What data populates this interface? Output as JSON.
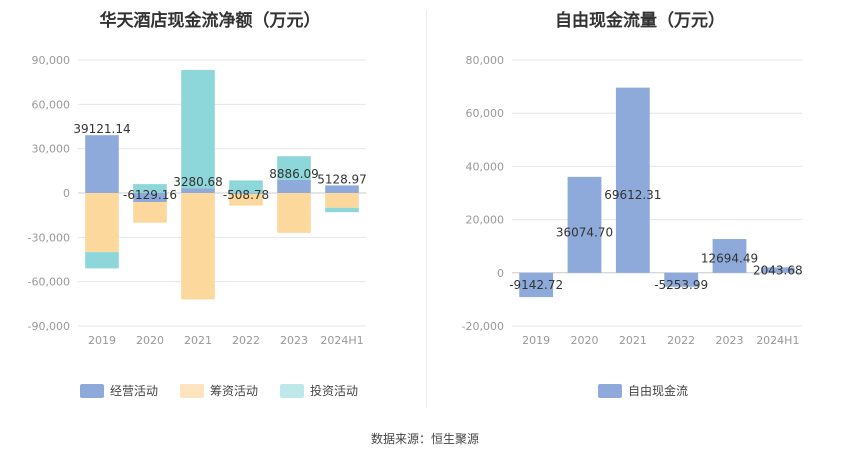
{
  "source_label": "数据来源：恒生聚源",
  "chart_data": [
    {
      "type": "bar",
      "stacked": true,
      "title": "华天酒店现金流净额（万元）",
      "categories": [
        "2019",
        "2020",
        "2021",
        "2022",
        "2023",
        "2024H1"
      ],
      "ylim": [
        -90000,
        90000
      ],
      "yticks": [
        90000,
        60000,
        30000,
        0,
        -30000,
        -60000,
        -90000
      ],
      "ytick_labels": [
        "90,000",
        "60,000",
        "30,000",
        "0",
        "-30,000",
        "-60,000",
        "-90,000"
      ],
      "grid": true,
      "legend_position": "bottom",
      "series": [
        {
          "name": "经营活动",
          "color": "#8eaadb",
          "values": [
            39121.14,
            -6129.16,
            3280.68,
            -508.78,
            8886.09,
            5128.97
          ]
        },
        {
          "name": "筹资活动",
          "color": "#fdd89c",
          "values": [
            -40000,
            -14000,
            -72000,
            -8000,
            -27000,
            -10000
          ]
        },
        {
          "name": "投资活动",
          "color": "#8dd6da",
          "values": [
            -11000,
            6000,
            80000,
            8500,
            16000,
            -3000
          ]
        }
      ],
      "data_labels": [
        "39121.14",
        "-6129.16",
        "3280.68",
        "-508.78",
        "8886.09",
        "5128.97"
      ]
    },
    {
      "type": "bar",
      "title": "自由现金流量（万元）",
      "categories": [
        "2019",
        "2020",
        "2021",
        "2022",
        "2023",
        "2024H1"
      ],
      "ylim": [
        -20000,
        80000
      ],
      "yticks": [
        80000,
        60000,
        40000,
        20000,
        0,
        -20000
      ],
      "ytick_labels": [
        "80,000",
        "60,000",
        "40,000",
        "20,000",
        "0",
        "-20,000"
      ],
      "grid": true,
      "legend_position": "bottom",
      "series": [
        {
          "name": "自由现金流",
          "color": "#8eaadb",
          "values": [
            -9142.72,
            36074.7,
            69612.31,
            -5253.99,
            12694.49,
            2043.68
          ]
        }
      ],
      "data_labels": [
        "-9142.72",
        "36074.70",
        "69612.31",
        "-5253.99",
        "12694.49",
        "2043.68"
      ]
    }
  ]
}
